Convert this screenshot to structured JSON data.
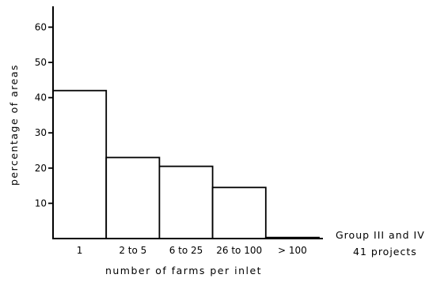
{
  "chart_data": {
    "type": "bar",
    "categories": [
      "1",
      "2 to 5",
      "6 to 25",
      "26 to 100",
      "> 100"
    ],
    "values": [
      42,
      23,
      20.5,
      14.5,
      0.3
    ],
    "xlabel": "number of farms per inlet",
    "ylabel": "percentage of areas",
    "ylim": [
      0,
      65
    ],
    "yticks": [
      10,
      20,
      30,
      40,
      50,
      60
    ],
    "grid": false,
    "legend": "none",
    "annotation": {
      "line1": "Group III and IV",
      "line2": "41 projects"
    }
  }
}
